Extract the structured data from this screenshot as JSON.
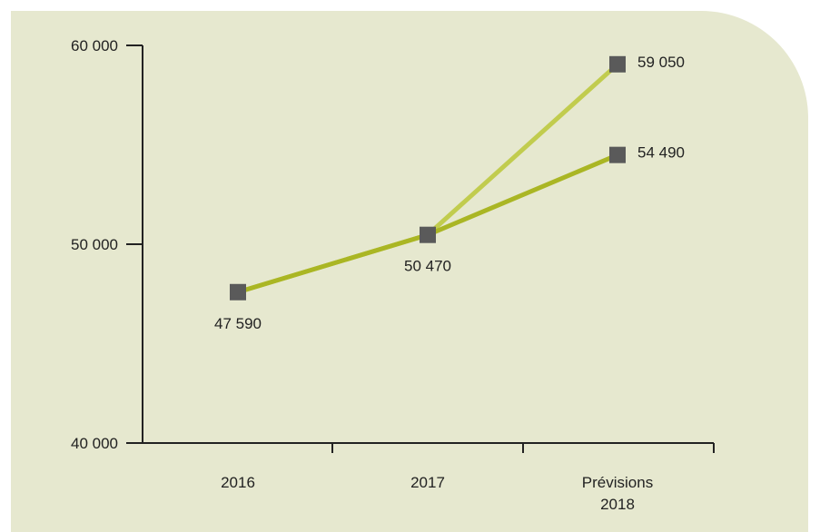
{
  "chart_data": {
    "type": "line",
    "categories": [
      "2016",
      "2017",
      "Prévisions\n2018"
    ],
    "ylim": [
      40000,
      60000
    ],
    "yticks": [
      40000,
      50000,
      60000
    ],
    "ytick_labels": [
      "40 000",
      "50 000",
      "60 000"
    ],
    "series": [
      {
        "values": [
          47590,
          50470,
          59050
        ],
        "color": "#c1cc4e",
        "labels": [
          "47 590",
          "50 470",
          "59 050"
        ]
      },
      {
        "values": [
          47590,
          50470,
          54490
        ],
        "color": "#aab624",
        "labels": [
          "47 590",
          "50 470",
          "54 490"
        ]
      }
    ],
    "marker_color": "#5a5a5a",
    "axis_color": "#222222",
    "background_color": "#e6e8cf",
    "grid": false,
    "legend": "none"
  }
}
